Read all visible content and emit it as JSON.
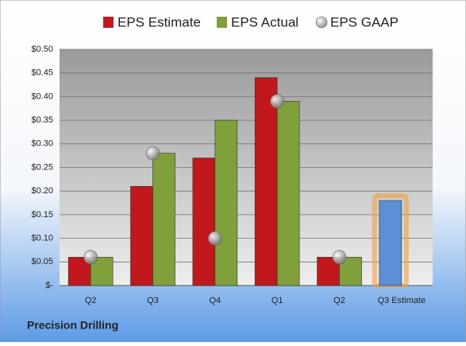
{
  "chart_data": {
    "type": "bar",
    "categories": [
      "Q2",
      "Q3",
      "Q4",
      "Q1",
      "Q2",
      "Q3 Estimate"
    ],
    "series": [
      {
        "name": "EPS Estimate",
        "color": "#c0181c",
        "values": [
          0.06,
          0.21,
          0.27,
          0.44,
          0.06,
          null
        ]
      },
      {
        "name": "EPS Actual",
        "color": "#7fa03a",
        "values": [
          0.06,
          0.28,
          0.35,
          0.39,
          0.06,
          null
        ]
      },
      {
        "name": "EPS GAAP",
        "color": "#a8a8a8",
        "type": "scatter",
        "values": [
          0.06,
          0.28,
          0.1,
          0.39,
          0.06,
          null
        ]
      }
    ],
    "highlight": {
      "color": "#5b8fd6",
      "glow": "#f0a040",
      "values": [
        null,
        null,
        null,
        null,
        null,
        0.18
      ]
    },
    "ylim": [
      0,
      0.5
    ],
    "yticks": [
      {
        "value": 0,
        "label": "$-"
      },
      {
        "value": 0.05,
        "label": "$0.05"
      },
      {
        "value": 0.1,
        "label": "$0.10"
      },
      {
        "value": 0.15,
        "label": "$0.15"
      },
      {
        "value": 0.2,
        "label": "$0.20"
      },
      {
        "value": 0.25,
        "label": "$0.25"
      },
      {
        "value": 0.3,
        "label": "$0.30"
      },
      {
        "value": 0.35,
        "label": "$0.35"
      },
      {
        "value": 0.4,
        "label": "$0.40"
      },
      {
        "value": 0.45,
        "label": "$0.45"
      },
      {
        "value": 0.5,
        "label": "$0.50"
      }
    ],
    "grid": true,
    "footer": "Precision Drilling"
  }
}
